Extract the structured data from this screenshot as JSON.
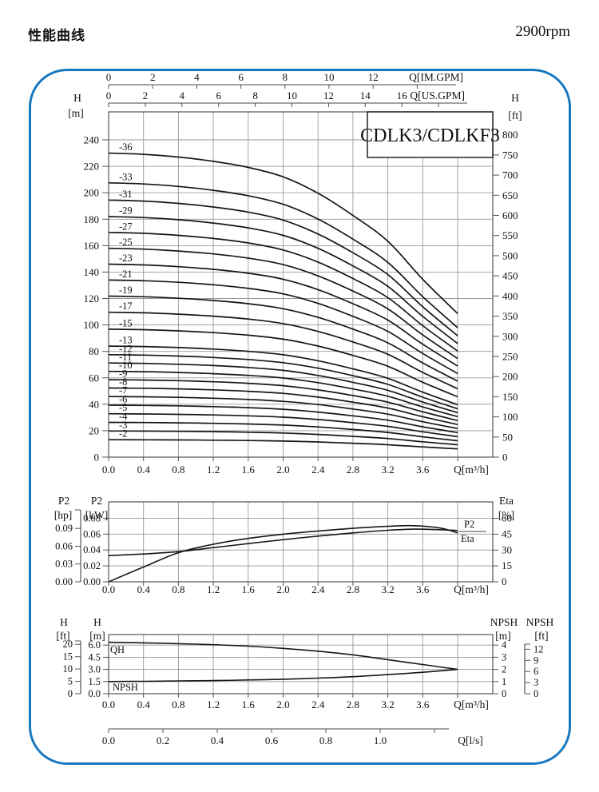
{
  "header": {
    "title": "性能曲线",
    "rpm": "2900rpm"
  },
  "colors": {
    "accent": "#1878be",
    "curve": "#161616",
    "grid": "#999999",
    "frame": "#555555",
    "text": "#111111"
  },
  "chart_data": [
    {
      "id": "hq",
      "type": "line",
      "title": "CDLK3/CDLKF3",
      "x_unit": "Q[m³/h]",
      "x_ticks": {
        "values": [
          0,
          0.4,
          0.8,
          1.2,
          1.6,
          2.0,
          2.4,
          2.8,
          3.2,
          3.6
        ],
        "labels": [
          "0.0",
          "0.4",
          "0.8",
          "1.2",
          "1.6",
          "2.0",
          "2.4",
          "2.8",
          "3.2",
          "3.6"
        ],
        "grid_max": 4.0
      },
      "ruler_im_gpm": {
        "unit": "Q[IM.GPM]",
        "labeled_ticks": [
          0,
          2,
          4,
          6,
          8,
          10,
          12
        ],
        "extra_ticks": [
          14
        ]
      },
      "ruler_us_gpm": {
        "unit": "Q[US.GPM]",
        "labeled_ticks": [
          0,
          2,
          4,
          6,
          8,
          10,
          12,
          14,
          16
        ],
        "extra_ticks": [
          18
        ]
      },
      "y_left": {
        "name": "H",
        "unit": "[m]",
        "ticks": [
          0,
          20,
          40,
          60,
          80,
          100,
          120,
          140,
          160,
          180,
          200,
          220,
          240
        ]
      },
      "y_right": {
        "name": "H",
        "unit": "[ft]",
        "ticks": [
          0,
          50,
          100,
          150,
          200,
          250,
          300,
          350,
          400,
          450,
          500,
          550,
          600,
          650,
          700,
          750,
          800
        ]
      },
      "profile": {
        "q": [
          0,
          0.4,
          0.8,
          1.2,
          1.6,
          2.0,
          2.4,
          2.8,
          3.2,
          3.6,
          4.0
        ],
        "head_ratio": [
          1,
          0.996,
          0.987,
          0.973,
          0.953,
          0.922,
          0.868,
          0.795,
          0.71,
          0.585,
          0.472
        ]
      },
      "curves": [
        {
          "label": "-36",
          "h0_m": 230
        },
        {
          "label": "-33",
          "h0_m": 207.5
        },
        {
          "label": "-31",
          "h0_m": 194.5
        },
        {
          "label": "-29",
          "h0_m": 182
        },
        {
          "label": "-27",
          "h0_m": 170
        },
        {
          "label": "-25",
          "h0_m": 158
        },
        {
          "label": "-23",
          "h0_m": 146
        },
        {
          "label": "-21",
          "h0_m": 134
        },
        {
          "label": "-19",
          "h0_m": 121.8
        },
        {
          "label": "-17",
          "h0_m": 109.6
        },
        {
          "label": "-15",
          "h0_m": 96.8
        },
        {
          "label": "-13",
          "h0_m": 84
        },
        {
          "label": "-12",
          "h0_m": 77.5
        },
        {
          "label": "-11",
          "h0_m": 71.2
        },
        {
          "label": "-10",
          "h0_m": 64.9
        },
        {
          "label": "-9",
          "h0_m": 58.6
        },
        {
          "label": "-8",
          "h0_m": 52.3
        },
        {
          "label": "-7",
          "h0_m": 45.8
        },
        {
          "label": "-6",
          "h0_m": 39.3
        },
        {
          "label": "-5",
          "h0_m": 32.8
        },
        {
          "label": "-4",
          "h0_m": 26.3
        },
        {
          "label": "-3",
          "h0_m": 19.8
        },
        {
          "label": "-2",
          "h0_m": 13.2
        }
      ]
    },
    {
      "id": "power-eta",
      "type": "line",
      "x_unit": "Q[m³/h]",
      "x_ticks": {
        "values": [
          0,
          0.4,
          0.8,
          1.2,
          1.6,
          2.0,
          2.4,
          2.8,
          3.2,
          3.6
        ],
        "labels": [
          "0.0",
          "0.4",
          "0.8",
          "1.2",
          "1.6",
          "2.0",
          "2.4",
          "2.8",
          "3.2",
          "3.6"
        ],
        "grid_max": 4.0
      },
      "y_hp": {
        "name": "P2",
        "unit": "[hp]",
        "ticks": [
          0,
          0.03,
          0.06,
          0.09
        ],
        "labels": [
          "0.00",
          "0.03",
          "0.06",
          "0.09"
        ]
      },
      "y_kw": {
        "name": "P2",
        "unit": "[kW]",
        "ticks": [
          0,
          0.02,
          0.04,
          0.06,
          0.08
        ],
        "labels": [
          "0.00",
          "0.02",
          "0.04",
          "0.06",
          "0.08"
        ]
      },
      "y_eta": {
        "name": "Eta",
        "unit": "[%]",
        "ticks": [
          0,
          15,
          30,
          45,
          60
        ]
      },
      "p2_curve": {
        "label": "P2",
        "points_kw": [
          [
            0,
            0.033
          ],
          [
            0.4,
            0.035
          ],
          [
            0.8,
            0.038
          ],
          [
            1.2,
            0.043
          ],
          [
            1.6,
            0.048
          ],
          [
            2.0,
            0.053
          ],
          [
            2.4,
            0.0575
          ],
          [
            2.8,
            0.0615
          ],
          [
            3.2,
            0.0648
          ],
          [
            3.5,
            0.0662
          ],
          [
            3.8,
            0.0655
          ],
          [
            4.0,
            0.0645
          ]
        ]
      },
      "eta_curve": {
        "label": "Eta",
        "points_pct": [
          [
            0,
            0
          ],
          [
            0.4,
            14
          ],
          [
            0.8,
            27.5
          ],
          [
            1.2,
            35.5
          ],
          [
            1.6,
            41
          ],
          [
            2.0,
            45
          ],
          [
            2.4,
            48
          ],
          [
            2.8,
            50.5
          ],
          [
            3.2,
            52.4
          ],
          [
            3.5,
            53
          ],
          [
            3.8,
            50.8
          ],
          [
            4.0,
            46.2
          ]
        ]
      }
    },
    {
      "id": "qh-npsh",
      "type": "line",
      "x_unit": "Q[m³/h]",
      "x_ticks": {
        "values": [
          0,
          0.4,
          0.8,
          1.2,
          1.6,
          2.0,
          2.4,
          2.8,
          3.2,
          3.6
        ],
        "labels": [
          "0.0",
          "0.4",
          "0.8",
          "1.2",
          "1.6",
          "2.0",
          "2.4",
          "2.8",
          "3.2",
          "3.6"
        ],
        "grid_max": 4.0
      },
      "y_h_ft": {
        "name": "H",
        "unit": "[ft]",
        "ticks": [
          0,
          5,
          10,
          15,
          20
        ]
      },
      "y_h_m": {
        "name": "H",
        "unit": "[m]",
        "ticks": [
          0,
          1.5,
          3.0,
          4.5,
          6.0
        ],
        "labels": [
          "0.0",
          "1.5",
          "3.0",
          "4.5",
          "6.0"
        ]
      },
      "y_npsh_m": {
        "name": "NPSH",
        "unit": "[m]",
        "ticks": [
          0,
          1,
          2,
          3,
          4
        ]
      },
      "y_npsh_ft": {
        "name": "NPSH",
        "unit": "[ft]",
        "ticks": [
          0,
          3,
          6,
          9,
          12
        ]
      },
      "qh_curve": {
        "label": "QH",
        "points_m": [
          [
            0,
            6.35
          ],
          [
            0.4,
            6.28
          ],
          [
            0.8,
            6.18
          ],
          [
            1.2,
            6.05
          ],
          [
            1.6,
            5.87
          ],
          [
            2.0,
            5.6
          ],
          [
            2.4,
            5.25
          ],
          [
            2.8,
            4.8
          ],
          [
            3.2,
            4.2
          ],
          [
            3.6,
            3.6
          ],
          [
            4.0,
            3.0
          ]
        ]
      },
      "npsh_curve": {
        "label": "NPSH",
        "points_npsh_m": [
          [
            0,
            1.0
          ],
          [
            0.4,
            1.02
          ],
          [
            0.8,
            1.05
          ],
          [
            1.2,
            1.08
          ],
          [
            1.6,
            1.13
          ],
          [
            2.0,
            1.19
          ],
          [
            2.4,
            1.28
          ],
          [
            2.8,
            1.4
          ],
          [
            3.2,
            1.57
          ],
          [
            3.6,
            1.76
          ],
          [
            4.0,
            2.0
          ]
        ]
      },
      "ruler_ls": {
        "unit": "Q[l/s]",
        "labels": [
          "0.0",
          "0.2",
          "0.4",
          "0.6",
          "0.8",
          "1.0"
        ],
        "extra_ticks": 1
      }
    }
  ]
}
